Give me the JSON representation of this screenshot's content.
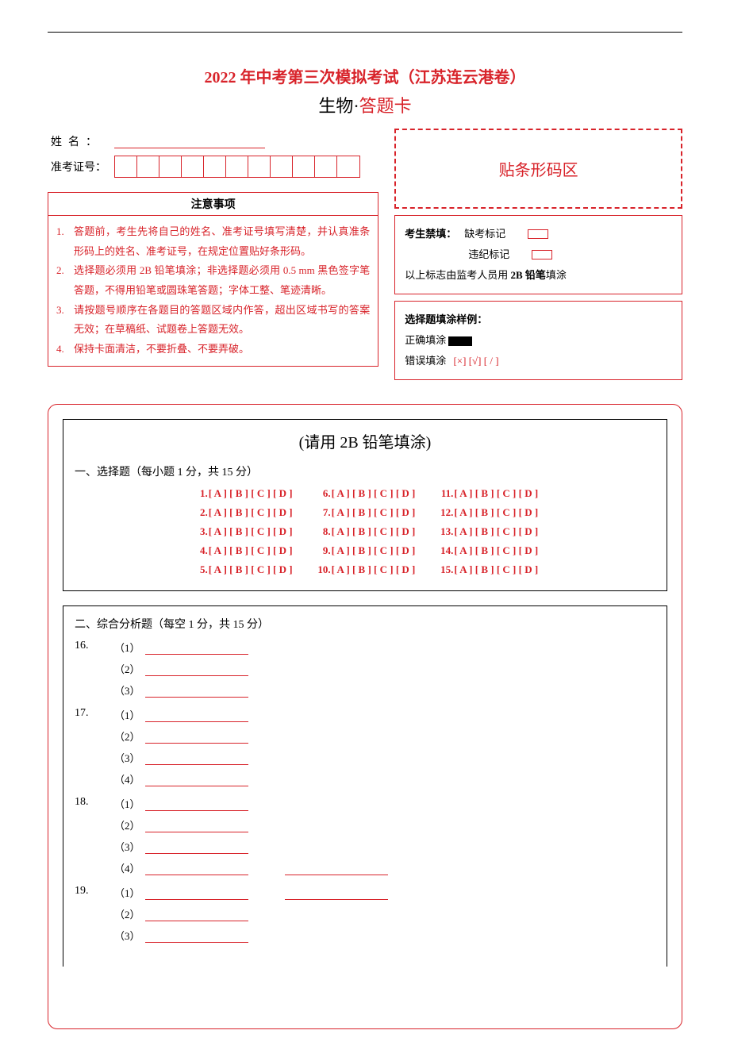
{
  "header": {
    "main_title": "2022 年中考第三次模拟考试（江苏连云港卷）",
    "sub_prefix": "生物·",
    "sub_suffix": "答题卡"
  },
  "fields": {
    "name_label": "姓名：",
    "id_label": "准考证号：",
    "id_box_count": 11
  },
  "notice": {
    "header": "注意事项",
    "items": [
      "答题前，考生先将自己的姓名、准考证号填写清楚，并认真准条形码上的姓名、准考证号，在规定位置贴好条形码。",
      "选择题必须用 2B 铅笔填涂；非选择题必须用 0.5 mm 黑色签字笔答题，不得用铅笔或圆珠笔答题；字体工整、笔迹清晰。",
      "请按题号顺序在各题目的答题区域内作答，超出区域书写的答案无效；在草稿纸、试题卷上答题无效。",
      "保持卡面清洁，不要折叠、不要弄破。"
    ]
  },
  "barcode": {
    "label": "贴条形码区"
  },
  "forbid": {
    "title": "考生禁填：",
    "absent": "缺考标记",
    "violation": "违纪标记",
    "note_pre": "以上标志由监考人员用 ",
    "note_bold": "2B 铅笔",
    "note_post": "填涂"
  },
  "sample": {
    "header": "选择题填涂样例：",
    "correct_label": "正确填涂",
    "wrong_label": "错误填涂",
    "wrong_marks": "[×]  [√]  [ / ]"
  },
  "mc": {
    "pencil_title": "(请用 2B 铅笔填涂)",
    "section_title": "一、选择题（每小题 1 分，共 15 分）",
    "options": "[ A ] [ B ] [ C ] [ D ]",
    "cols": [
      [
        1,
        2,
        3,
        4,
        5
      ],
      [
        6,
        7,
        8,
        9,
        10
      ],
      [
        11,
        12,
        13,
        14,
        15
      ]
    ]
  },
  "analysis": {
    "section_title": "二、综合分析题（每空 1 分，共 15 分）",
    "questions": [
      {
        "num": "16.",
        "subs": [
          "（1）",
          "（2）",
          "（3）"
        ],
        "extra": [
          false,
          false,
          false
        ]
      },
      {
        "num": "17.",
        "subs": [
          "（1）",
          "（2）",
          "（3）",
          "（4）"
        ],
        "extra": [
          false,
          false,
          false,
          false
        ]
      },
      {
        "num": "18.",
        "subs": [
          "（1）",
          "（2）",
          "（3）",
          "（4）"
        ],
        "extra": [
          false,
          false,
          false,
          true
        ]
      },
      {
        "num": "19.",
        "subs": [
          "（1）",
          "（2）",
          "（3）"
        ],
        "extra": [
          true,
          false,
          false
        ]
      }
    ]
  }
}
